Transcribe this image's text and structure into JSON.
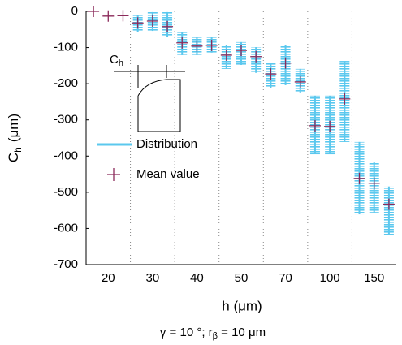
{
  "chart_data": {
    "type": "distribution",
    "y_label": {
      "main": "C",
      "sub": "h",
      "unit": "(μm)"
    },
    "x_label": "h (μm)",
    "caption": {
      "part1": "γ = 10 °; r",
      "sub": "β",
      "part2": " = 10 μm"
    },
    "inset_label": {
      "main": "C",
      "sub": "h"
    },
    "categories": [
      null,
      "20",
      null,
      null,
      "30",
      null,
      null,
      "40",
      null,
      null,
      "50",
      null,
      null,
      "70",
      null,
      null,
      "100",
      null,
      null,
      "150",
      null
    ],
    "series": [
      {
        "name": "Distribution",
        "color": "#5bc8ee",
        "low": [
          null,
          null,
          null,
          -58,
          -54,
          -70,
          -121,
          -121,
          -114,
          -159,
          -148,
          -170,
          -211,
          -204,
          -226,
          -395,
          -395,
          -361,
          -561,
          -556,
          -619
        ],
        "high": [
          null,
          null,
          null,
          -9,
          -2,
          -2,
          -58,
          -70,
          -70,
          -92,
          -85,
          -99,
          -143,
          -92,
          -159,
          -233,
          -233,
          -137,
          -361,
          -417,
          -484
        ]
      },
      {
        "name": "Mean value",
        "color": "#8b2a5a",
        "values": [
          0,
          -13,
          -12,
          -32,
          -27,
          -42,
          -87,
          -96,
          -94,
          -121,
          -108,
          -125,
          -173,
          -143,
          -195,
          -316,
          -318,
          -242,
          -462,
          -475,
          -533
        ]
      }
    ],
    "ylim": [
      -700,
      0
    ],
    "yticks": [
      0,
      -100,
      -200,
      -300,
      -400,
      -500,
      -600,
      -700
    ]
  }
}
